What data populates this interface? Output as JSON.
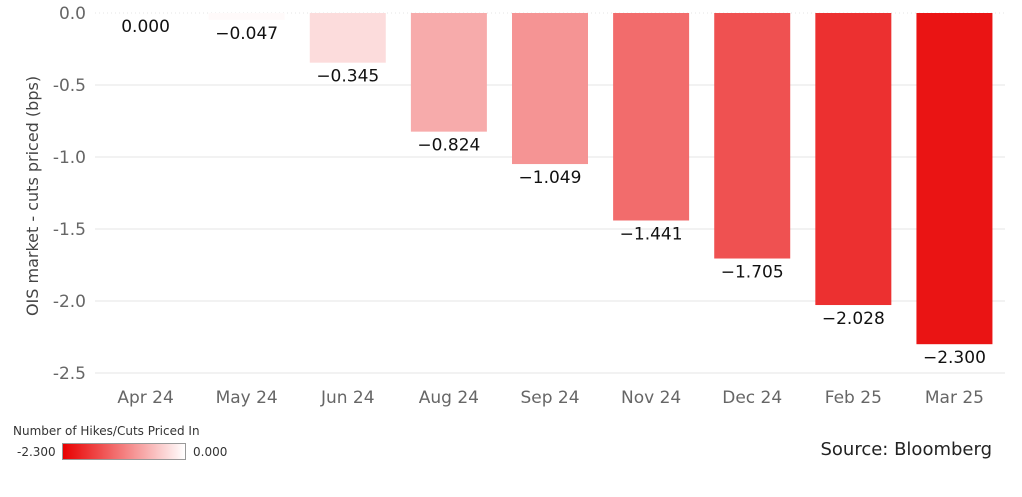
{
  "chart_data": {
    "type": "bar",
    "title": "",
    "xlabel": "",
    "ylabel": "OIS market - cuts priced (bps)",
    "categories": [
      "Apr 24",
      "May 24",
      "Jun 24",
      "Aug 24",
      "Sep 24",
      "Nov 24",
      "Dec 24",
      "Feb 25",
      "Mar 25"
    ],
    "values": [
      0.0,
      -0.047,
      -0.345,
      -0.824,
      -1.049,
      -1.441,
      -1.705,
      -2.028,
      -2.3
    ],
    "data_labels": [
      "0.000",
      "-0.047",
      "-0.345",
      "-0.824",
      "-1.049",
      "-1.441",
      "-1.705",
      "-2.028",
      "-2.300"
    ],
    "ylim": [
      -2.5,
      0.0
    ],
    "yticks": [
      0.0,
      -0.5,
      -1.0,
      -1.5,
      -2.0,
      -2.5
    ],
    "ytick_labels": [
      "0.0",
      "-0.5",
      "-1.0",
      "-1.5",
      "-2.0",
      "-2.5"
    ],
    "grid": true,
    "color_scale": {
      "min_color": "#e80000",
      "max_color": "#ffffff"
    }
  },
  "legend": {
    "title": "Number of Hikes/Cuts Priced In",
    "min_label": "-2.300",
    "max_label": "0.000",
    "position": "bottom-left"
  },
  "source": "Source: Bloomberg"
}
